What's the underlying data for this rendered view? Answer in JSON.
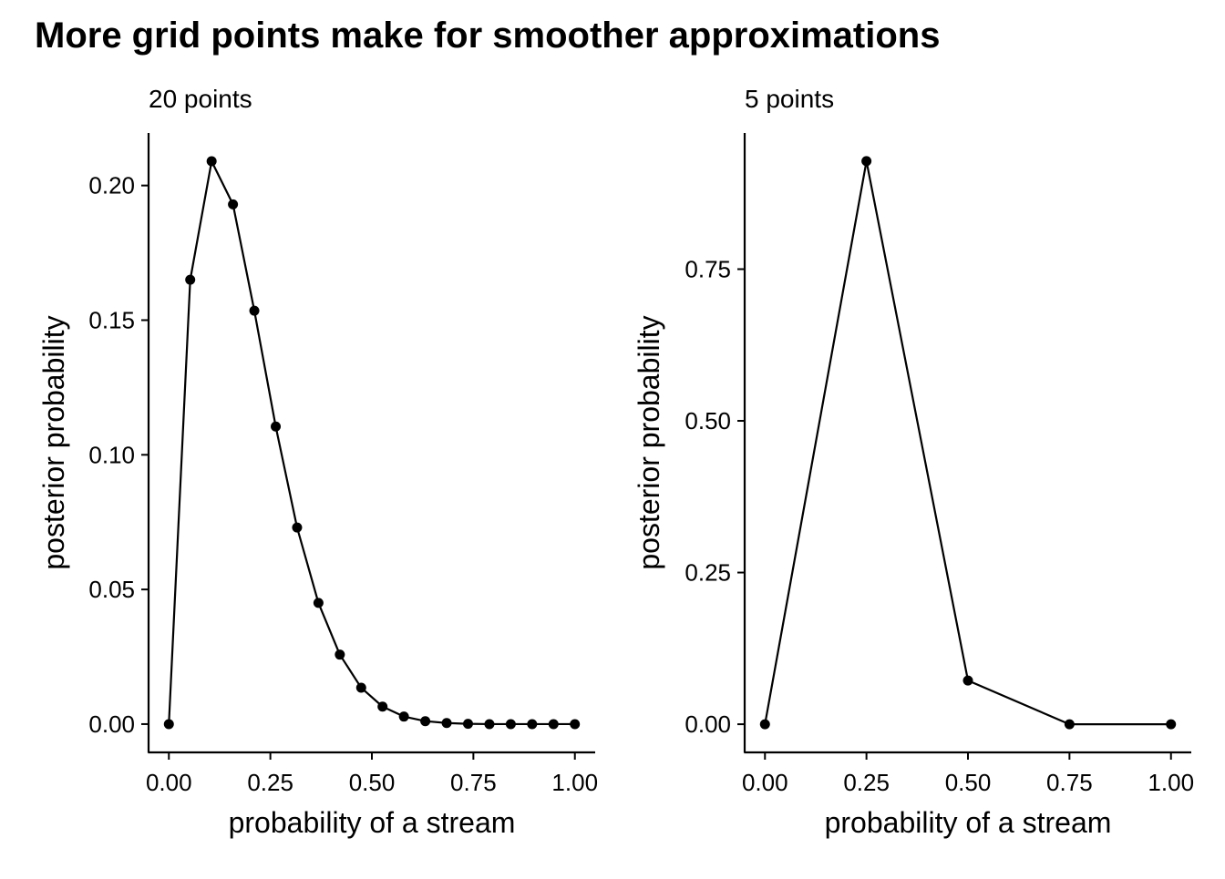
{
  "title": "More grid points make for smoother approximations",
  "chart_data": [
    {
      "type": "line",
      "title": "20 points",
      "xlabel": "probability of a stream",
      "ylabel": "posterior probability",
      "xlim": [
        -0.05,
        1.05
      ],
      "ylim": [
        -0.0105,
        0.2195
      ],
      "xticks": [
        0.0,
        0.25,
        0.5,
        0.75,
        1.0
      ],
      "xtick_labels": [
        "0.00",
        "0.25",
        "0.50",
        "0.75",
        "1.00"
      ],
      "yticks": [
        0.0,
        0.05,
        0.1,
        0.15,
        0.2
      ],
      "ytick_labels": [
        "0.00",
        "0.05",
        "0.10",
        "0.15",
        "0.20"
      ],
      "markers": true,
      "grid": false,
      "x": [
        0.0,
        0.0526,
        0.1053,
        0.1579,
        0.2105,
        0.2632,
        0.3158,
        0.3684,
        0.4211,
        0.4737,
        0.5263,
        0.5789,
        0.6316,
        0.6842,
        0.7368,
        0.7895,
        0.8421,
        0.8947,
        0.9474,
        1.0
      ],
      "y": [
        0.0,
        0.165,
        0.209,
        0.193,
        0.1535,
        0.1105,
        0.073,
        0.045,
        0.0258,
        0.0135,
        0.0065,
        0.0028,
        0.0011,
        0.0004,
        0.0001,
        0.0,
        0.0,
        0.0,
        0.0,
        0.0
      ]
    },
    {
      "type": "line",
      "title": "5 points",
      "xlabel": "probability of a stream",
      "ylabel": "posterior probability",
      "xlim": [
        -0.05,
        1.05
      ],
      "ylim": [
        -0.0464,
        0.9744
      ],
      "xticks": [
        0.0,
        0.25,
        0.5,
        0.75,
        1.0
      ],
      "xtick_labels": [
        "0.00",
        "0.25",
        "0.50",
        "0.75",
        "1.00"
      ],
      "yticks": [
        0.0,
        0.25,
        0.5,
        0.75
      ],
      "ytick_labels": [
        "0.00",
        "0.25",
        "0.50",
        "0.75"
      ],
      "markers": true,
      "grid": false,
      "x": [
        0.0,
        0.25,
        0.5,
        0.75,
        1.0
      ],
      "y": [
        0.0,
        0.928,
        0.072,
        0.0,
        0.0
      ]
    }
  ]
}
